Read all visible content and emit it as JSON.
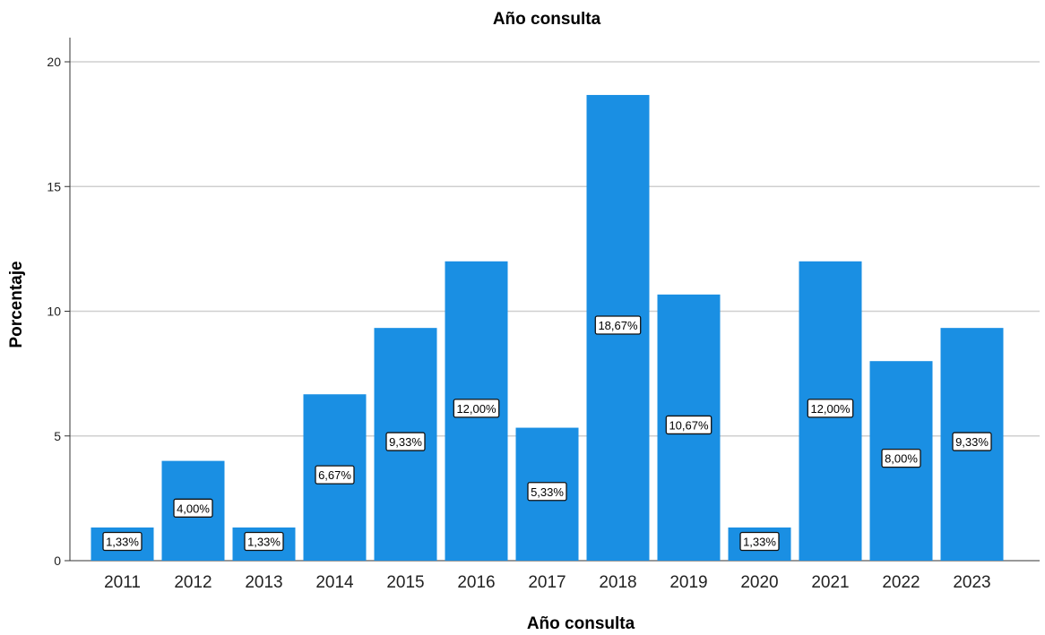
{
  "chart_data": {
    "type": "bar",
    "title": "Año consulta",
    "xlabel": "Año consulta",
    "ylabel": "Porcentaje",
    "ylim": [
      0,
      21
    ],
    "yticks": [
      "0",
      "5",
      "10",
      "15",
      "20"
    ],
    "grid": true,
    "categories": [
      "2011",
      "2012",
      "2013",
      "2014",
      "2015",
      "2016",
      "2017",
      "2018",
      "2019",
      "2020",
      "2021",
      "2022",
      "2023"
    ],
    "values": [
      1.33,
      4.0,
      1.33,
      6.67,
      9.33,
      12.0,
      5.33,
      18.67,
      10.67,
      1.33,
      12.0,
      8.0,
      9.33
    ],
    "data_labels": [
      "1,33%",
      "4,00%",
      "1,33%",
      "6,67%",
      "9,33%",
      "12,00%",
      "5,33%",
      "18,67%",
      "10,67%",
      "1,33%",
      "12,00%",
      "8,00%",
      "9,33%"
    ],
    "bar_color": "#1a8fe3"
  }
}
